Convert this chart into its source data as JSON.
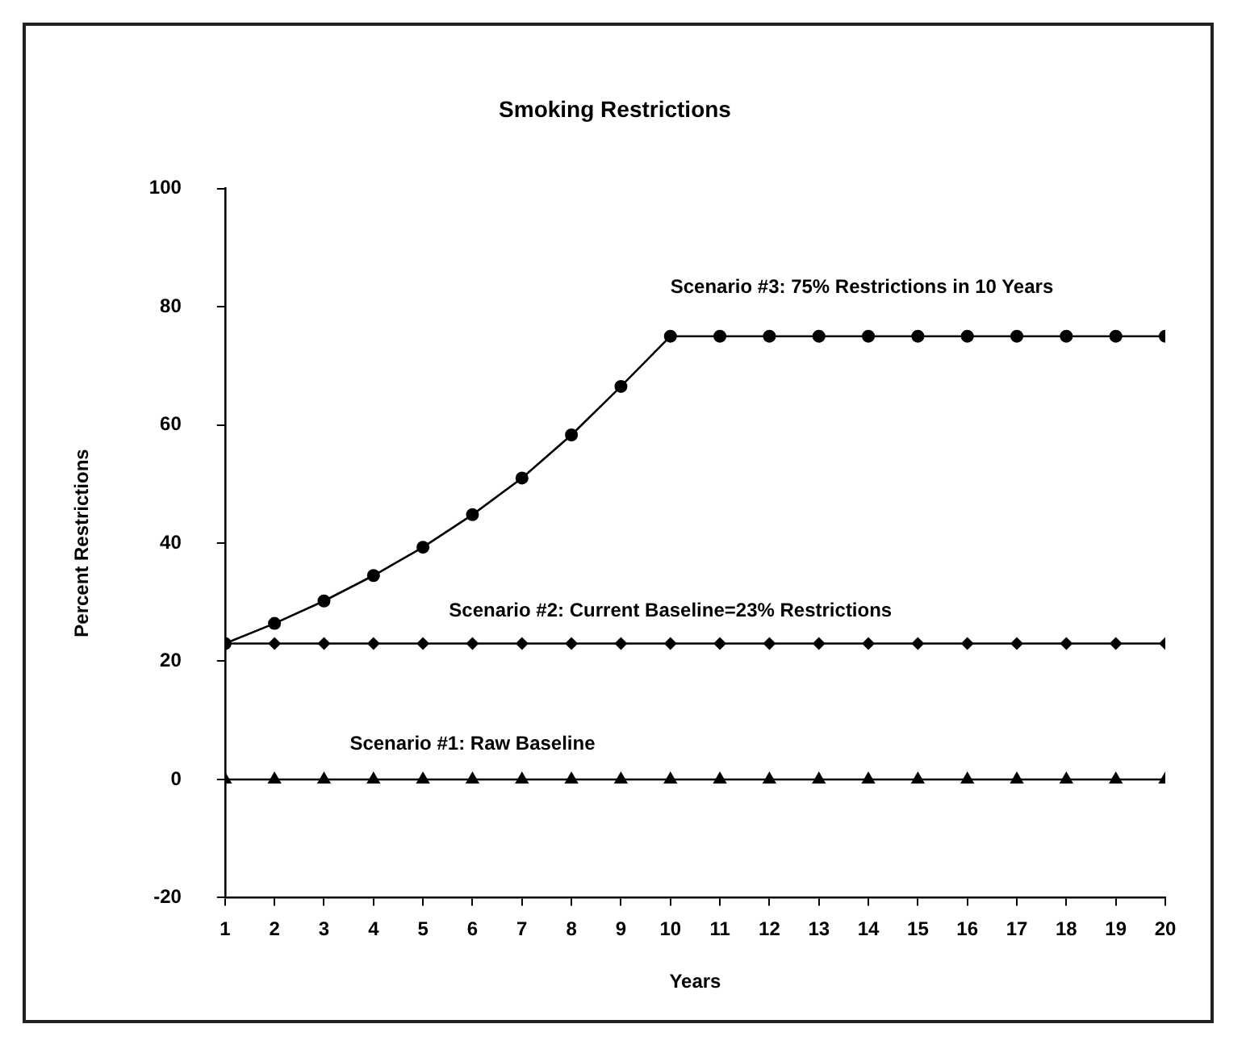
{
  "chart_data": {
    "type": "line",
    "title": "Smoking Restrictions",
    "xlabel": "Years",
    "ylabel": "Percent Restrictions",
    "x": [
      1,
      2,
      3,
      4,
      5,
      6,
      7,
      8,
      9,
      10,
      11,
      12,
      13,
      14,
      15,
      16,
      17,
      18,
      19,
      20
    ],
    "xlim": [
      1,
      20
    ],
    "xticks": [
      1,
      2,
      3,
      4,
      5,
      6,
      7,
      8,
      9,
      10,
      11,
      12,
      13,
      14,
      15,
      16,
      17,
      18,
      19,
      20
    ],
    "ylim": [
      -20,
      100
    ],
    "yticks": [
      -20,
      0,
      20,
      40,
      60,
      80,
      100
    ],
    "grid": false,
    "legend": false,
    "line_style": "solid",
    "series": [
      {
        "name": "Scenario #3: 75% Restrictions in 10 Years",
        "color": "#000000",
        "marker": "circle",
        "values": [
          23,
          26.4,
          30.2,
          34.5,
          39.3,
          44.8,
          51,
          58.3,
          66.5,
          75,
          75,
          75,
          75,
          75,
          75,
          75,
          75,
          75,
          75,
          75
        ]
      },
      {
        "name": "Scenario #2: Current Baseline=23% Restrictions",
        "color": "#000000",
        "marker": "diamond",
        "values": [
          23,
          23,
          23,
          23,
          23,
          23,
          23,
          23,
          23,
          23,
          23,
          23,
          23,
          23,
          23,
          23,
          23,
          23,
          23,
          23
        ]
      },
      {
        "name": "Scenario #1: Raw Baseline",
        "color": "#000000",
        "marker": "triangle",
        "values": [
          0,
          0,
          0,
          0,
          0,
          0,
          0,
          0,
          0,
          0,
          0,
          0,
          0,
          0,
          0,
          0,
          0,
          0,
          0,
          0
        ]
      }
    ]
  }
}
